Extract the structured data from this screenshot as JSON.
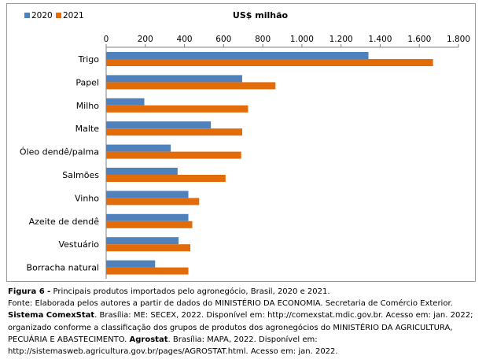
{
  "chart_data": {
    "type": "bar",
    "orientation": "horizontal",
    "title": "US$ milhão",
    "categories": [
      "Trigo",
      "Papel",
      "Milho",
      "Malte",
      "Óleo dendê/palma",
      "Salmões",
      "Vinho",
      "Azeite de dendê",
      "Vestuário",
      "Borracha natural"
    ],
    "series": [
      {
        "name": "2020",
        "color": "#4f81bd",
        "values": [
          1340,
          695,
          195,
          535,
          330,
          365,
          420,
          420,
          370,
          250
        ]
      },
      {
        "name": "2021",
        "color": "#e36c0a",
        "values": [
          1670,
          865,
          725,
          695,
          690,
          610,
          475,
          440,
          430,
          420
        ]
      }
    ],
    "xlim": [
      0,
      1800
    ],
    "xticks": [
      0,
      200,
      400,
      600,
      800,
      1000,
      1200,
      1400,
      1600,
      1800
    ],
    "xtick_labels": [
      "0",
      "200",
      "400",
      "600",
      "800",
      "1.000",
      "1.200",
      "1.400",
      "1.600",
      "1.800"
    ],
    "legend_position": "top-left",
    "grid": false
  },
  "caption": {
    "figure_label": "Figura 6 -",
    "figure_text": " Principais produtos importados pelo agronegócio, Brasil, 2020 e 2021.",
    "source_a": "Fonte: Elaborada pelos autores a partir de dados do MINISTÉRIO DA ECONOMIA. Secretaria de Comércio Exterior. ",
    "source_b_bold": "Sistema ComexStat",
    "source_c": ". Brasília: ME: SECEX, 2022. Disponível em: http://comexstat.mdic.gov.br. Acesso em: jan. 2022; organizado conforme a classificação dos grupos de produtos dos agronegócios do MINISTÉRIO DA AGRICULTURA, PECUÁRIA E ABASTECIMENTO. ",
    "source_d_bold": "Agrostat",
    "source_e": ". Brasília: MAPA, 2022. Disponível em: http://sistemasweb.agricultura.gov.br/pages/AGROSTAT.html. Acesso em: jan. 2022."
  }
}
